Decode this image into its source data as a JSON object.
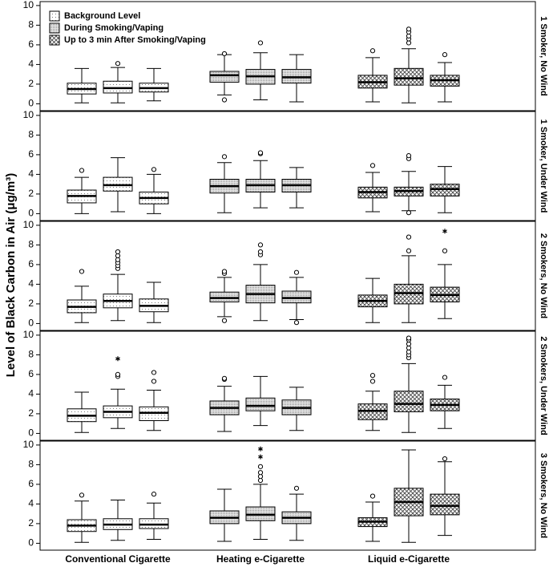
{
  "chart_data": {
    "type": "box",
    "ylabel": "Level of Black Carbon in Air (μg/m³)",
    "categories": [
      "Conventional Cigarette",
      "Heating e-Cigarette",
      "Liquid e-Cigarette"
    ],
    "series": [
      {
        "name": "Background Level",
        "pattern": "dots"
      },
      {
        "name": "During Smoking/Vaping",
        "pattern": "dense-dots"
      },
      {
        "name": "Up to 3 min After Smoking/Vaping",
        "pattern": "crosshatch"
      }
    ],
    "ylim": [
      -0.7,
      10.4
    ],
    "yticks": [
      0,
      2,
      4,
      6,
      8,
      10
    ],
    "legend": "upper left",
    "panels": [
      {
        "title": "1 Smoker, No Wind",
        "boxes": [
          [
            {
              "min": 0.1,
              "q1": 1.0,
              "median": 1.5,
              "q3": 2.1,
              "max": 3.6
            },
            {
              "min": 0.1,
              "q1": 1.1,
              "median": 1.6,
              "q3": 2.3,
              "max": 3.7,
              "outliers": [
                4.1
              ]
            },
            {
              "min": 0.3,
              "q1": 1.2,
              "median": 1.6,
              "q3": 2.1,
              "max": 3.6
            }
          ],
          [
            {
              "min": 0.9,
              "q1": 2.2,
              "median": 2.9,
              "q3": 3.3,
              "max": 5.0,
              "outliers": [
                0.4,
                5.1
              ]
            },
            {
              "min": 0.4,
              "q1": 2.0,
              "median": 2.8,
              "q3": 3.5,
              "max": 5.2,
              "outliers": [
                6.2
              ]
            },
            {
              "min": 0.2,
              "q1": 2.1,
              "median": 2.7,
              "q3": 3.5,
              "max": 5.0
            }
          ],
          [
            {
              "min": 0.2,
              "q1": 1.6,
              "median": 2.2,
              "q3": 2.9,
              "max": 4.7,
              "outliers": [
                5.4
              ]
            },
            {
              "min": 0.1,
              "q1": 1.9,
              "median": 2.6,
              "q3": 3.6,
              "max": 5.6,
              "outliers": [
                6.2,
                6.6,
                6.9,
                7.3,
                7.6
              ]
            },
            {
              "min": 0.2,
              "q1": 1.8,
              "median": 2.4,
              "q3": 2.9,
              "max": 4.2,
              "outliers": [
                5.0
              ]
            }
          ]
        ]
      },
      {
        "title": "1 Smoker, Under Wind",
        "boxes": [
          [
            {
              "min": 0.0,
              "q1": 1.1,
              "median": 1.8,
              "q3": 2.4,
              "max": 3.7,
              "outliers": [
                4.4
              ]
            },
            {
              "min": 0.2,
              "q1": 2.3,
              "median": 2.9,
              "q3": 3.7,
              "max": 5.7
            },
            {
              "min": 0.0,
              "q1": 1.0,
              "median": 1.6,
              "q3": 2.2,
              "max": 4.0,
              "outliers": [
                4.5
              ]
            }
          ],
          [
            {
              "min": 0.1,
              "q1": 2.1,
              "median": 2.8,
              "q3": 3.5,
              "max": 5.2,
              "outliers": [
                5.8
              ]
            },
            {
              "min": 0.6,
              "q1": 2.2,
              "median": 2.9,
              "q3": 3.5,
              "max": 5.4,
              "outliers": [
                6.1,
                6.2
              ]
            },
            {
              "min": 0.6,
              "q1": 2.2,
              "median": 2.9,
              "q3": 3.5,
              "max": 4.7
            }
          ],
          [
            {
              "min": 0.2,
              "q1": 1.6,
              "median": 2.2,
              "q3": 2.7,
              "max": 4.2,
              "outliers": [
                4.9
              ]
            },
            {
              "min": 0.3,
              "q1": 1.8,
              "median": 2.3,
              "q3": 2.7,
              "max": 4.3,
              "outliers": [
                0.1,
                5.6,
                5.9
              ]
            },
            {
              "min": 0.1,
              "q1": 1.8,
              "median": 2.5,
              "q3": 3.0,
              "max": 4.8
            }
          ]
        ]
      },
      {
        "title": "2 Smokers, No Wind",
        "boxes": [
          [
            {
              "min": 0.1,
              "q1": 1.1,
              "median": 1.7,
              "q3": 2.4,
              "max": 3.8,
              "outliers": [
                5.3
              ]
            },
            {
              "min": 0.3,
              "q1": 1.6,
              "median": 2.3,
              "q3": 3.0,
              "max": 5.0,
              "outliers": [
                5.6,
                5.9,
                6.2,
                6.5,
                6.9,
                7.3
              ]
            },
            {
              "min": 0.1,
              "q1": 1.2,
              "median": 1.8,
              "q3": 2.5,
              "max": 4.2
            }
          ],
          [
            {
              "min": 0.7,
              "q1": 2.2,
              "median": 2.6,
              "q3": 3.2,
              "max": 4.7,
              "outliers": [
                0.3,
                5.1,
                5.3
              ]
            },
            {
              "min": 0.3,
              "q1": 2.1,
              "median": 3.0,
              "q3": 3.9,
              "max": 6.0,
              "outliers": [
                7.0,
                7.3,
                8.0
              ]
            },
            {
              "min": 0.4,
              "q1": 2.1,
              "median": 2.6,
              "q3": 3.3,
              "max": 4.7,
              "outliers": [
                0.1,
                5.2
              ]
            }
          ],
          [
            {
              "min": 0.1,
              "q1": 1.7,
              "median": 2.3,
              "q3": 2.9,
              "max": 4.6
            },
            {
              "min": 0.1,
              "q1": 2.0,
              "median": 3.1,
              "q3": 4.0,
              "max": 6.9,
              "outliers": [
                7.4,
                8.8
              ]
            },
            {
              "min": 0.5,
              "q1": 2.2,
              "median": 2.9,
              "q3": 3.7,
              "max": 6.0,
              "outliers": [
                7.4
              ],
              "extremes": [
                9.4
              ]
            }
          ]
        ]
      },
      {
        "title": "2 Smokers, Under Wind",
        "boxes": [
          [
            {
              "min": 0.1,
              "q1": 1.2,
              "median": 1.8,
              "q3": 2.5,
              "max": 4.2
            },
            {
              "min": 0.5,
              "q1": 1.6,
              "median": 2.2,
              "q3": 2.8,
              "max": 4.5,
              "outliers": [
                5.8,
                6.0
              ],
              "extremes": [
                7.6
              ]
            },
            {
              "min": 0.3,
              "q1": 1.3,
              "median": 2.1,
              "q3": 2.7,
              "max": 4.4,
              "outliers": [
                5.3,
                6.2
              ]
            }
          ],
          [
            {
              "min": 0.2,
              "q1": 1.9,
              "median": 2.6,
              "q3": 3.3,
              "max": 4.8,
              "outliers": [
                5.5,
                5.6
              ]
            },
            {
              "min": 0.8,
              "q1": 2.3,
              "median": 2.8,
              "q3": 3.6,
              "max": 5.8
            },
            {
              "min": 0.3,
              "q1": 1.9,
              "median": 2.6,
              "q3": 3.4,
              "max": 4.7
            }
          ],
          [
            {
              "min": 0.3,
              "q1": 1.4,
              "median": 2.3,
              "q3": 3.0,
              "max": 4.3,
              "outliers": [
                5.3,
                5.9
              ]
            },
            {
              "min": 0.1,
              "q1": 2.2,
              "median": 3.0,
              "q3": 4.3,
              "max": 7.1,
              "outliers": [
                7.7,
                8.0,
                8.3,
                8.7,
                9.1,
                9.5,
                9.7
              ]
            },
            {
              "min": 0.5,
              "q1": 2.3,
              "median": 2.9,
              "q3": 3.5,
              "max": 4.9,
              "outliers": [
                5.7
              ]
            }
          ]
        ]
      },
      {
        "title": "3 Smokers, No Wind",
        "boxes": [
          [
            {
              "min": 0.1,
              "q1": 1.2,
              "median": 1.8,
              "q3": 2.4,
              "max": 4.3,
              "outliers": [
                4.9
              ]
            },
            {
              "min": 0.3,
              "q1": 1.4,
              "median": 1.9,
              "q3": 2.5,
              "max": 4.4
            },
            {
              "min": 0.4,
              "q1": 1.5,
              "median": 1.9,
              "q3": 2.5,
              "max": 4.1,
              "outliers": [
                5.0
              ]
            }
          ],
          [
            {
              "min": 0.2,
              "q1": 2.0,
              "median": 2.6,
              "q3": 3.3,
              "max": 5.5
            },
            {
              "min": 0.4,
              "q1": 2.3,
              "median": 2.9,
              "q3": 3.7,
              "max": 6.0,
              "outliers": [
                6.4,
                6.8,
                7.2,
                7.8
              ],
              "extremes": [
                8.8,
                9.6
              ]
            },
            {
              "min": 0.3,
              "q1": 2.0,
              "median": 2.6,
              "q3": 3.2,
              "max": 5.0,
              "outliers": [
                5.6
              ]
            }
          ],
          [
            {
              "min": 0.2,
              "q1": 1.7,
              "median": 2.2,
              "q3": 2.6,
              "max": 4.2,
              "outliers": [
                4.8
              ]
            },
            {
              "min": 0.1,
              "q1": 2.8,
              "median": 4.2,
              "q3": 5.6,
              "max": 9.5
            },
            {
              "min": 0.8,
              "q1": 2.9,
              "median": 3.8,
              "q3": 5.0,
              "max": 8.3,
              "outliers": [
                8.6
              ]
            }
          ]
        ]
      }
    ]
  }
}
